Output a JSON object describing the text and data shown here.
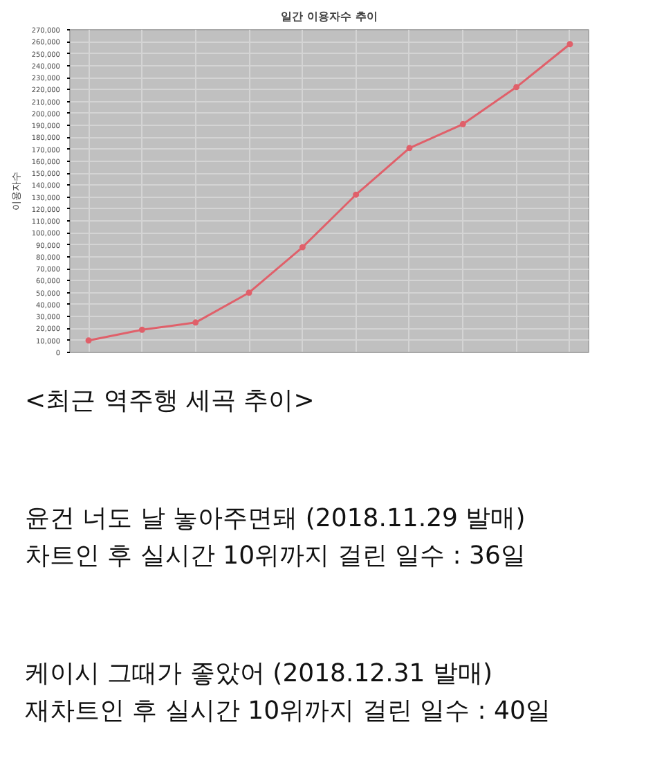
{
  "chart_data": {
    "type": "line",
    "title": "일간 이용자수 추이",
    "ylabel": "이용자수",
    "categories": [
      null,
      null,
      null,
      null,
      null,
      null,
      null,
      null,
      null,
      null
    ],
    "series": [
      {
        "color": "#e0606a",
        "values": [
          10000,
          19000,
          25000,
          50000,
          88000,
          132000,
          171000,
          191000,
          222000,
          258000
        ]
      }
    ],
    "ylim": [
      0,
      270000
    ],
    "yticks": [
      {
        "value": 0,
        "label": "0"
      },
      {
        "value": 10000,
        "label": "10,000"
      },
      {
        "value": 20000,
        "label": "20,000"
      },
      {
        "value": 30000,
        "label": "30,000"
      },
      {
        "value": 40000,
        "label": "40,000"
      },
      {
        "value": 50000,
        "label": "50,000"
      },
      {
        "value": 60000,
        "label": "60,000"
      },
      {
        "value": 70000,
        "label": "70,000"
      },
      {
        "value": 80000,
        "label": "80,000"
      },
      {
        "value": 90000,
        "label": "90,000"
      },
      {
        "value": 100000,
        "label": "100,000"
      },
      {
        "value": 110000,
        "label": "110,000"
      },
      {
        "value": 120000,
        "label": "120,000"
      },
      {
        "value": 130000,
        "label": "130,000"
      },
      {
        "value": 140000,
        "label": "140,000"
      },
      {
        "value": 150000,
        "label": "150,000"
      },
      {
        "value": 160000,
        "label": "160,000"
      },
      {
        "value": 170000,
        "label": "170,000"
      },
      {
        "value": 180000,
        "label": "180,000"
      },
      {
        "value": 190000,
        "label": "190,000"
      },
      {
        "value": 200000,
        "label": "200,000"
      },
      {
        "value": 210000,
        "label": "210,000"
      },
      {
        "value": 220000,
        "label": "220,000"
      },
      {
        "value": 230000,
        "label": "230,000"
      },
      {
        "value": 240000,
        "label": "240,000"
      },
      {
        "value": 250000,
        "label": "250,000"
      },
      {
        "value": 260000,
        "label": "260,000"
      },
      {
        "value": 270000,
        "label": "270,000"
      }
    ],
    "grid": true,
    "marker": "circle",
    "line_style": "solid",
    "tick_labels": "y",
    "annotations": [
      "<최근 역주행 세곡 추이>",
      "윤건 너도 날 놓아주면돼 (2018.11.29 발매)",
      "차트인 후 실시간 10위까지 걸린 일수 : 36일",
      "케이시 그때가 좋았어 (2018.12.31 발매)",
      "재차트인 후 실시간 10위까지 걸린 일수 : 40일"
    ]
  }
}
